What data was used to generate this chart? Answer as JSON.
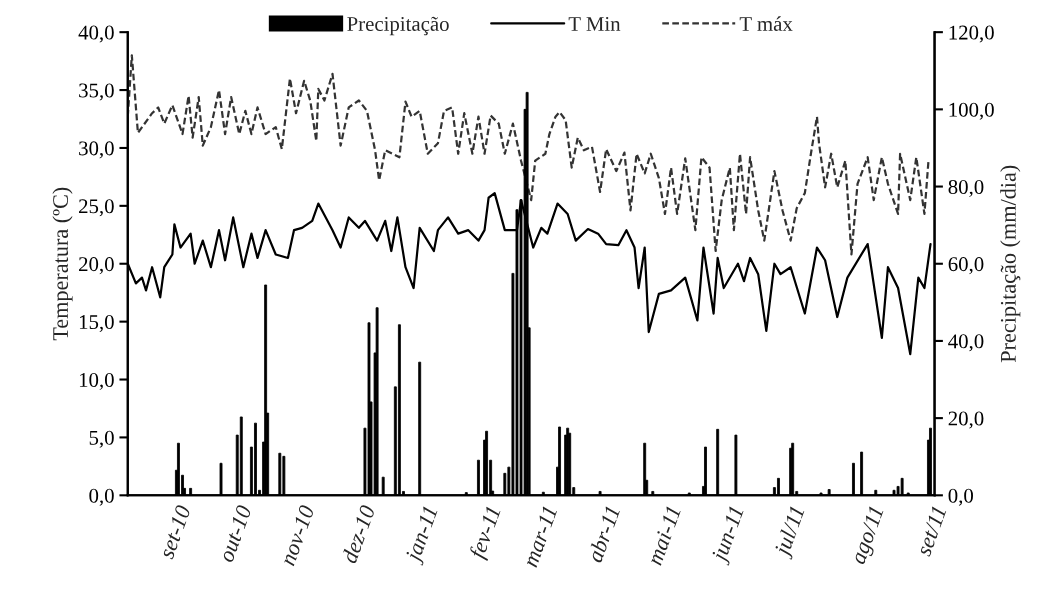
{
  "chart_data": {
    "type": "line",
    "ylabel": "Temperatura (ºC)",
    "y2label": "Precipitação (mm/dia)",
    "xlim": [
      "2010-08-08",
      "2011-09-10"
    ],
    "xticks": [
      {
        "value": "2010-09-01",
        "label": "set-10"
      },
      {
        "value": "2010-10-01",
        "label": "out-10"
      },
      {
        "value": "2010-11-01",
        "label": "nov-10"
      },
      {
        "value": "2010-12-01",
        "label": "dez-10"
      },
      {
        "value": "2011-01-01",
        "label": "jan-11"
      },
      {
        "value": "2011-02-01",
        "label": "fev-11"
      },
      {
        "value": "2011-03-01",
        "label": "mar-11"
      },
      {
        "value": "2011-04-01",
        "label": "abr-11"
      },
      {
        "value": "2011-05-01",
        "label": "mai-11"
      },
      {
        "value": "2011-06-01",
        "label": "jun-11"
      },
      {
        "value": "2011-07-01",
        "label": "jul/11"
      },
      {
        "value": "2011-08-09",
        "label": "ago/11"
      },
      {
        "value": "2011-09-09",
        "label": "set/11"
      }
    ],
    "ylim": [
      0,
      40
    ],
    "yticks": [
      {
        "value": 0,
        "label": "0,0"
      },
      {
        "value": 5,
        "label": "5,0"
      },
      {
        "value": 10,
        "label": "10,0"
      },
      {
        "value": 15,
        "label": "15,0"
      },
      {
        "value": 20,
        "label": "20,0"
      },
      {
        "value": 25,
        "label": "25,0"
      },
      {
        "value": 30,
        "label": "30,0"
      },
      {
        "value": 35,
        "label": "35,0"
      },
      {
        "value": 40,
        "label": "40,0"
      }
    ],
    "y2lim": [
      0,
      120
    ],
    "y2ticks": [
      {
        "value": 0,
        "label": "0,0"
      },
      {
        "value": 20,
        "label": "20,0"
      },
      {
        "value": 40,
        "label": "40,0"
      },
      {
        "value": 60,
        "label": "60,0"
      },
      {
        "value": 80,
        "label": "80,0"
      },
      {
        "value": 100,
        "label": "100,0"
      },
      {
        "value": 120,
        "label": "120,0"
      }
    ],
    "legend": "top",
    "series": [
      {
        "name": "Precipitação",
        "type": "bar",
        "axis": "y2",
        "color": "#000000",
        "x": [
          "2010-09-01",
          "2010-09-02",
          "2010-09-04",
          "2010-09-05",
          "2010-09-08",
          "2010-09-23",
          "2010-10-01",
          "2010-10-03",
          "2010-10-08",
          "2010-10-10",
          "2010-10-12",
          "2010-10-14",
          "2010-10-15",
          "2010-10-16",
          "2010-10-22",
          "2010-10-24",
          "2010-12-03",
          "2010-12-05",
          "2010-12-06",
          "2010-12-08",
          "2010-12-09",
          "2010-12-12",
          "2010-12-18",
          "2010-12-20",
          "2010-12-22",
          "2010-12-30",
          "2011-01-22",
          "2011-01-28",
          "2011-01-31",
          "2011-02-01",
          "2011-02-03",
          "2011-02-04",
          "2011-02-10",
          "2011-02-12",
          "2011-02-14",
          "2011-02-16",
          "2011-02-18",
          "2011-02-20",
          "2011-02-21",
          "2011-02-22",
          "2011-03-01",
          "2011-03-08",
          "2011-03-09",
          "2011-03-12",
          "2011-03-13",
          "2011-03-14",
          "2011-03-16",
          "2011-03-29",
          "2011-04-20",
          "2011-04-21",
          "2011-04-24",
          "2011-05-12",
          "2011-05-19",
          "2011-05-20",
          "2011-05-26",
          "2011-06-04",
          "2011-06-23",
          "2011-06-25",
          "2011-07-01",
          "2011-07-02",
          "2011-07-04",
          "2011-07-16",
          "2011-07-20",
          "2011-08-01",
          "2011-08-05",
          "2011-08-12",
          "2011-08-21",
          "2011-08-23",
          "2011-08-25",
          "2011-08-28",
          "2011-09-07",
          "2011-09-08"
        ],
        "values": [
          6.5,
          13.5,
          5.2,
          1.8,
          1.8,
          8.3,
          15.6,
          20.3,
          12.5,
          18.7,
          1.3,
          13.8,
          54.5,
          21.3,
          10.9,
          10.1,
          17.4,
          44.7,
          24.2,
          36.9,
          48.6,
          4.7,
          28.1,
          44.2,
          1.0,
          34.5,
          0.7,
          9.1,
          14.3,
          16.6,
          9.1,
          1.1,
          5.7,
          7.3,
          57.5,
          74.0,
          76.6,
          100.0,
          104.4,
          43.4,
          0.8,
          7.3,
          17.7,
          15.6,
          17.4,
          16.1,
          2.0,
          1.0,
          13.5,
          3.9,
          1.0,
          0.6,
          2.3,
          12.5,
          17.1,
          15.6,
          2.0,
          4.4,
          12.2,
          13.5,
          1.0,
          0.6,
          1.5,
          8.3,
          11.2,
          1.3,
          1.3,
          2.3,
          4.4,
          0.6,
          14.3,
          17.4
        ]
      },
      {
        "name": "T Min",
        "line_style": "solid",
        "color": "#000000",
        "x": [
          "2010-08-08",
          "2010-08-12",
          "2010-08-15",
          "2010-08-17",
          "2010-08-20",
          "2010-08-24",
          "2010-08-26",
          "2010-08-30",
          "2010-08-31",
          "2010-09-03",
          "2010-09-08",
          "2010-09-10",
          "2010-09-14",
          "2010-09-18",
          "2010-09-22",
          "2010-09-25",
          "2010-09-29",
          "2010-10-04",
          "2010-10-08",
          "2010-10-11",
          "2010-10-15",
          "2010-10-20",
          "2010-10-26",
          "2010-10-29",
          "2010-11-02",
          "2010-11-07",
          "2010-11-10",
          "2010-11-17",
          "2010-11-21",
          "2010-11-25",
          "2010-11-30",
          "2010-12-03",
          "2010-12-09",
          "2010-12-13",
          "2010-12-16",
          "2010-12-19",
          "2010-12-23",
          "2010-12-27",
          "2010-12-30",
          "2011-01-06",
          "2011-01-08",
          "2011-01-13",
          "2011-01-18",
          "2011-01-23",
          "2011-01-28",
          "2011-01-31",
          "2011-02-02",
          "2011-02-05",
          "2011-02-10",
          "2011-02-16",
          "2011-02-18",
          "2011-02-24",
          "2011-02-28",
          "2011-03-03",
          "2011-03-08",
          "2011-03-13",
          "2011-03-17",
          "2011-03-23",
          "2011-03-28",
          "2011-04-01",
          "2011-04-07",
          "2011-04-11",
          "2011-04-15",
          "2011-04-17",
          "2011-04-20",
          "2011-04-22",
          "2011-04-27",
          "2011-05-03",
          "2011-05-10",
          "2011-05-16",
          "2011-05-19",
          "2011-05-24",
          "2011-05-26",
          "2011-05-29",
          "2011-06-05",
          "2011-06-08",
          "2011-06-11",
          "2011-06-15",
          "2011-06-19",
          "2011-06-23",
          "2011-06-26",
          "2011-07-01",
          "2011-07-08",
          "2011-07-14",
          "2011-07-18",
          "2011-07-24",
          "2011-07-29",
          "2011-08-08",
          "2011-08-15",
          "2011-08-18",
          "2011-08-23",
          "2011-08-29",
          "2011-09-02",
          "2011-09-05",
          "2011-09-08"
        ],
        "values": [
          20.0,
          18.3,
          18.8,
          17.7,
          19.7,
          17.1,
          19.7,
          20.8,
          23.4,
          21.4,
          22.6,
          20.0,
          22.0,
          19.7,
          22.9,
          20.3,
          24.0,
          19.7,
          22.6,
          20.5,
          22.9,
          20.8,
          20.5,
          22.9,
          23.1,
          23.7,
          25.2,
          22.9,
          21.4,
          24.0,
          23.1,
          23.7,
          22.0,
          23.7,
          21.1,
          24.0,
          19.7,
          17.9,
          23.1,
          21.1,
          22.9,
          24.0,
          22.6,
          22.9,
          22.0,
          22.9,
          25.7,
          26.1,
          22.9,
          22.9,
          25.5,
          21.4,
          23.1,
          22.6,
          25.2,
          24.3,
          22.0,
          23.0,
          22.6,
          21.7,
          21.6,
          22.9,
          21.4,
          17.9,
          21.4,
          14.1,
          17.4,
          17.7,
          18.8,
          15.1,
          21.4,
          15.7,
          20.5,
          17.9,
          20.0,
          18.5,
          20.5,
          19.1,
          14.2,
          20.0,
          19.1,
          19.7,
          15.7,
          21.4,
          20.3,
          15.4,
          18.8,
          21.7,
          13.6,
          19.7,
          17.9,
          12.2,
          18.8,
          17.9,
          21.7
        ]
      },
      {
        "name": "T máx",
        "line_style": "dashed",
        "color": "#333333",
        "x": [
          "2010-08-08",
          "2010-08-10",
          "2010-08-13",
          "2010-08-20",
          "2010-08-23",
          "2010-08-26",
          "2010-08-30",
          "2010-09-04",
          "2010-09-07",
          "2010-09-09",
          "2010-09-12",
          "2010-09-14",
          "2010-09-18",
          "2010-09-22",
          "2010-09-25",
          "2010-09-28",
          "2010-10-02",
          "2010-10-05",
          "2010-10-08",
          "2010-10-11",
          "2010-10-15",
          "2010-10-20",
          "2010-10-23",
          "2010-10-27",
          "2010-10-30",
          "2010-11-03",
          "2010-11-06",
          "2010-11-09",
          "2010-11-10",
          "2010-11-13",
          "2010-11-17",
          "2010-11-21",
          "2010-11-25",
          "2010-11-30",
          "2010-12-04",
          "2010-12-08",
          "2010-12-10",
          "2010-12-13",
          "2010-12-20",
          "2010-12-23",
          "2010-12-26",
          "2010-12-30",
          "2011-01-03",
          "2011-01-08",
          "2011-01-11",
          "2011-01-15",
          "2011-01-18",
          "2011-01-21",
          "2011-01-25",
          "2011-01-28",
          "2011-01-31",
          "2011-02-03",
          "2011-02-07",
          "2011-02-10",
          "2011-02-14",
          "2011-02-18",
          "2011-02-23",
          "2011-02-25",
          "2011-03-02",
          "2011-03-04",
          "2011-03-07",
          "2011-03-09",
          "2011-03-12",
          "2011-03-15",
          "2011-03-18",
          "2011-03-21",
          "2011-03-25",
          "2011-03-29",
          "2011-04-01",
          "2011-04-06",
          "2011-04-10",
          "2011-04-13",
          "2011-04-16",
          "2011-04-20",
          "2011-04-23",
          "2011-04-27",
          "2011-04-30",
          "2011-05-03",
          "2011-05-06",
          "2011-05-10",
          "2011-05-15",
          "2011-05-18",
          "2011-05-22",
          "2011-05-25",
          "2011-05-28",
          "2011-06-01",
          "2011-06-03",
          "2011-06-06",
          "2011-06-09",
          "2011-06-11",
          "2011-06-15",
          "2011-06-18",
          "2011-06-23",
          "2011-06-27",
          "2011-07-01",
          "2011-07-04",
          "2011-07-08",
          "2011-07-11",
          "2011-07-14",
          "2011-07-15",
          "2011-07-18",
          "2011-07-21",
          "2011-07-24",
          "2011-07-28",
          "2011-07-31",
          "2011-08-03",
          "2011-08-08",
          "2011-08-11",
          "2011-08-15",
          "2011-08-18",
          "2011-08-23",
          "2011-08-24",
          "2011-08-29",
          "2011-09-01",
          "2011-09-05",
          "2011-09-07"
        ],
        "values": [
          32.7,
          38.0,
          31.3,
          33.0,
          33.5,
          32.1,
          33.7,
          31.2,
          34.5,
          30.9,
          34.4,
          30.2,
          31.8,
          35.0,
          31.2,
          34.4,
          31.2,
          33.2,
          31.2,
          33.5,
          31.2,
          31.8,
          29.9,
          36.0,
          33.0,
          35.8,
          34.1,
          30.6,
          35.1,
          34.1,
          36.4,
          30.2,
          33.5,
          34.1,
          33.2,
          29.8,
          27.2,
          29.8,
          29.2,
          34.0,
          32.7,
          33.2,
          29.5,
          30.4,
          33.2,
          33.5,
          29.5,
          33.0,
          29.5,
          32.7,
          29.5,
          32.8,
          32.1,
          29.5,
          32.1,
          28.9,
          25.5,
          28.9,
          29.5,
          31.2,
          32.7,
          33.1,
          32.4,
          28.3,
          30.9,
          29.8,
          30.1,
          26.2,
          29.9,
          28.0,
          29.6,
          24.6,
          29.5,
          27.8,
          29.5,
          27.4,
          24.3,
          28.3,
          24.3,
          29.1,
          22.9,
          29.2,
          28.3,
          21.1,
          25.5,
          28.3,
          22.9,
          29.5,
          24.3,
          29.2,
          24.6,
          22.0,
          28.0,
          24.6,
          22.0,
          24.8,
          26.1,
          29.5,
          32.7,
          30.4,
          26.6,
          29.5,
          26.6,
          28.9,
          20.8,
          26.9,
          29.2,
          25.5,
          29.2,
          26.9,
          24.3,
          29.5,
          25.5,
          29.2,
          24.3,
          28.9
        ]
      }
    ]
  }
}
